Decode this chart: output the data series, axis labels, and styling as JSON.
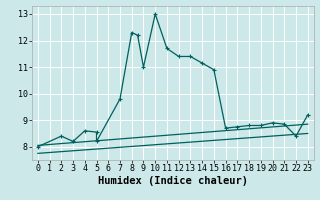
{
  "xlabel": "Humidex (Indice chaleur)",
  "bg_color": "#cce8e8",
  "grid_color": "#ffffff",
  "line_color": "#006060",
  "xlim": [
    -0.5,
    23.5
  ],
  "ylim": [
    7.5,
    13.3
  ],
  "yticks": [
    8,
    9,
    10,
    11,
    12,
    13
  ],
  "xticks": [
    0,
    1,
    2,
    3,
    4,
    5,
    6,
    7,
    8,
    9,
    10,
    11,
    12,
    13,
    14,
    15,
    16,
    17,
    18,
    19,
    20,
    21,
    22,
    23
  ],
  "series1_x": [
    0,
    2,
    3,
    4,
    5,
    5,
    7,
    8,
    8.5,
    9,
    10,
    11,
    12,
    13,
    14,
    15,
    16,
    17,
    18,
    19,
    20,
    21,
    22,
    23
  ],
  "series1_y": [
    8.0,
    8.4,
    8.2,
    8.6,
    8.55,
    8.2,
    9.8,
    12.3,
    12.2,
    11.0,
    13.0,
    11.7,
    11.4,
    11.4,
    11.15,
    10.9,
    8.7,
    8.75,
    8.8,
    8.8,
    8.9,
    8.85,
    8.4,
    9.2
  ],
  "series2_x": [
    0,
    23
  ],
  "series2_y": [
    8.05,
    8.85
  ],
  "series3_x": [
    0,
    23
  ],
  "series3_y": [
    7.75,
    8.5
  ],
  "tick_fontsize": 6,
  "label_fontsize": 7.5
}
